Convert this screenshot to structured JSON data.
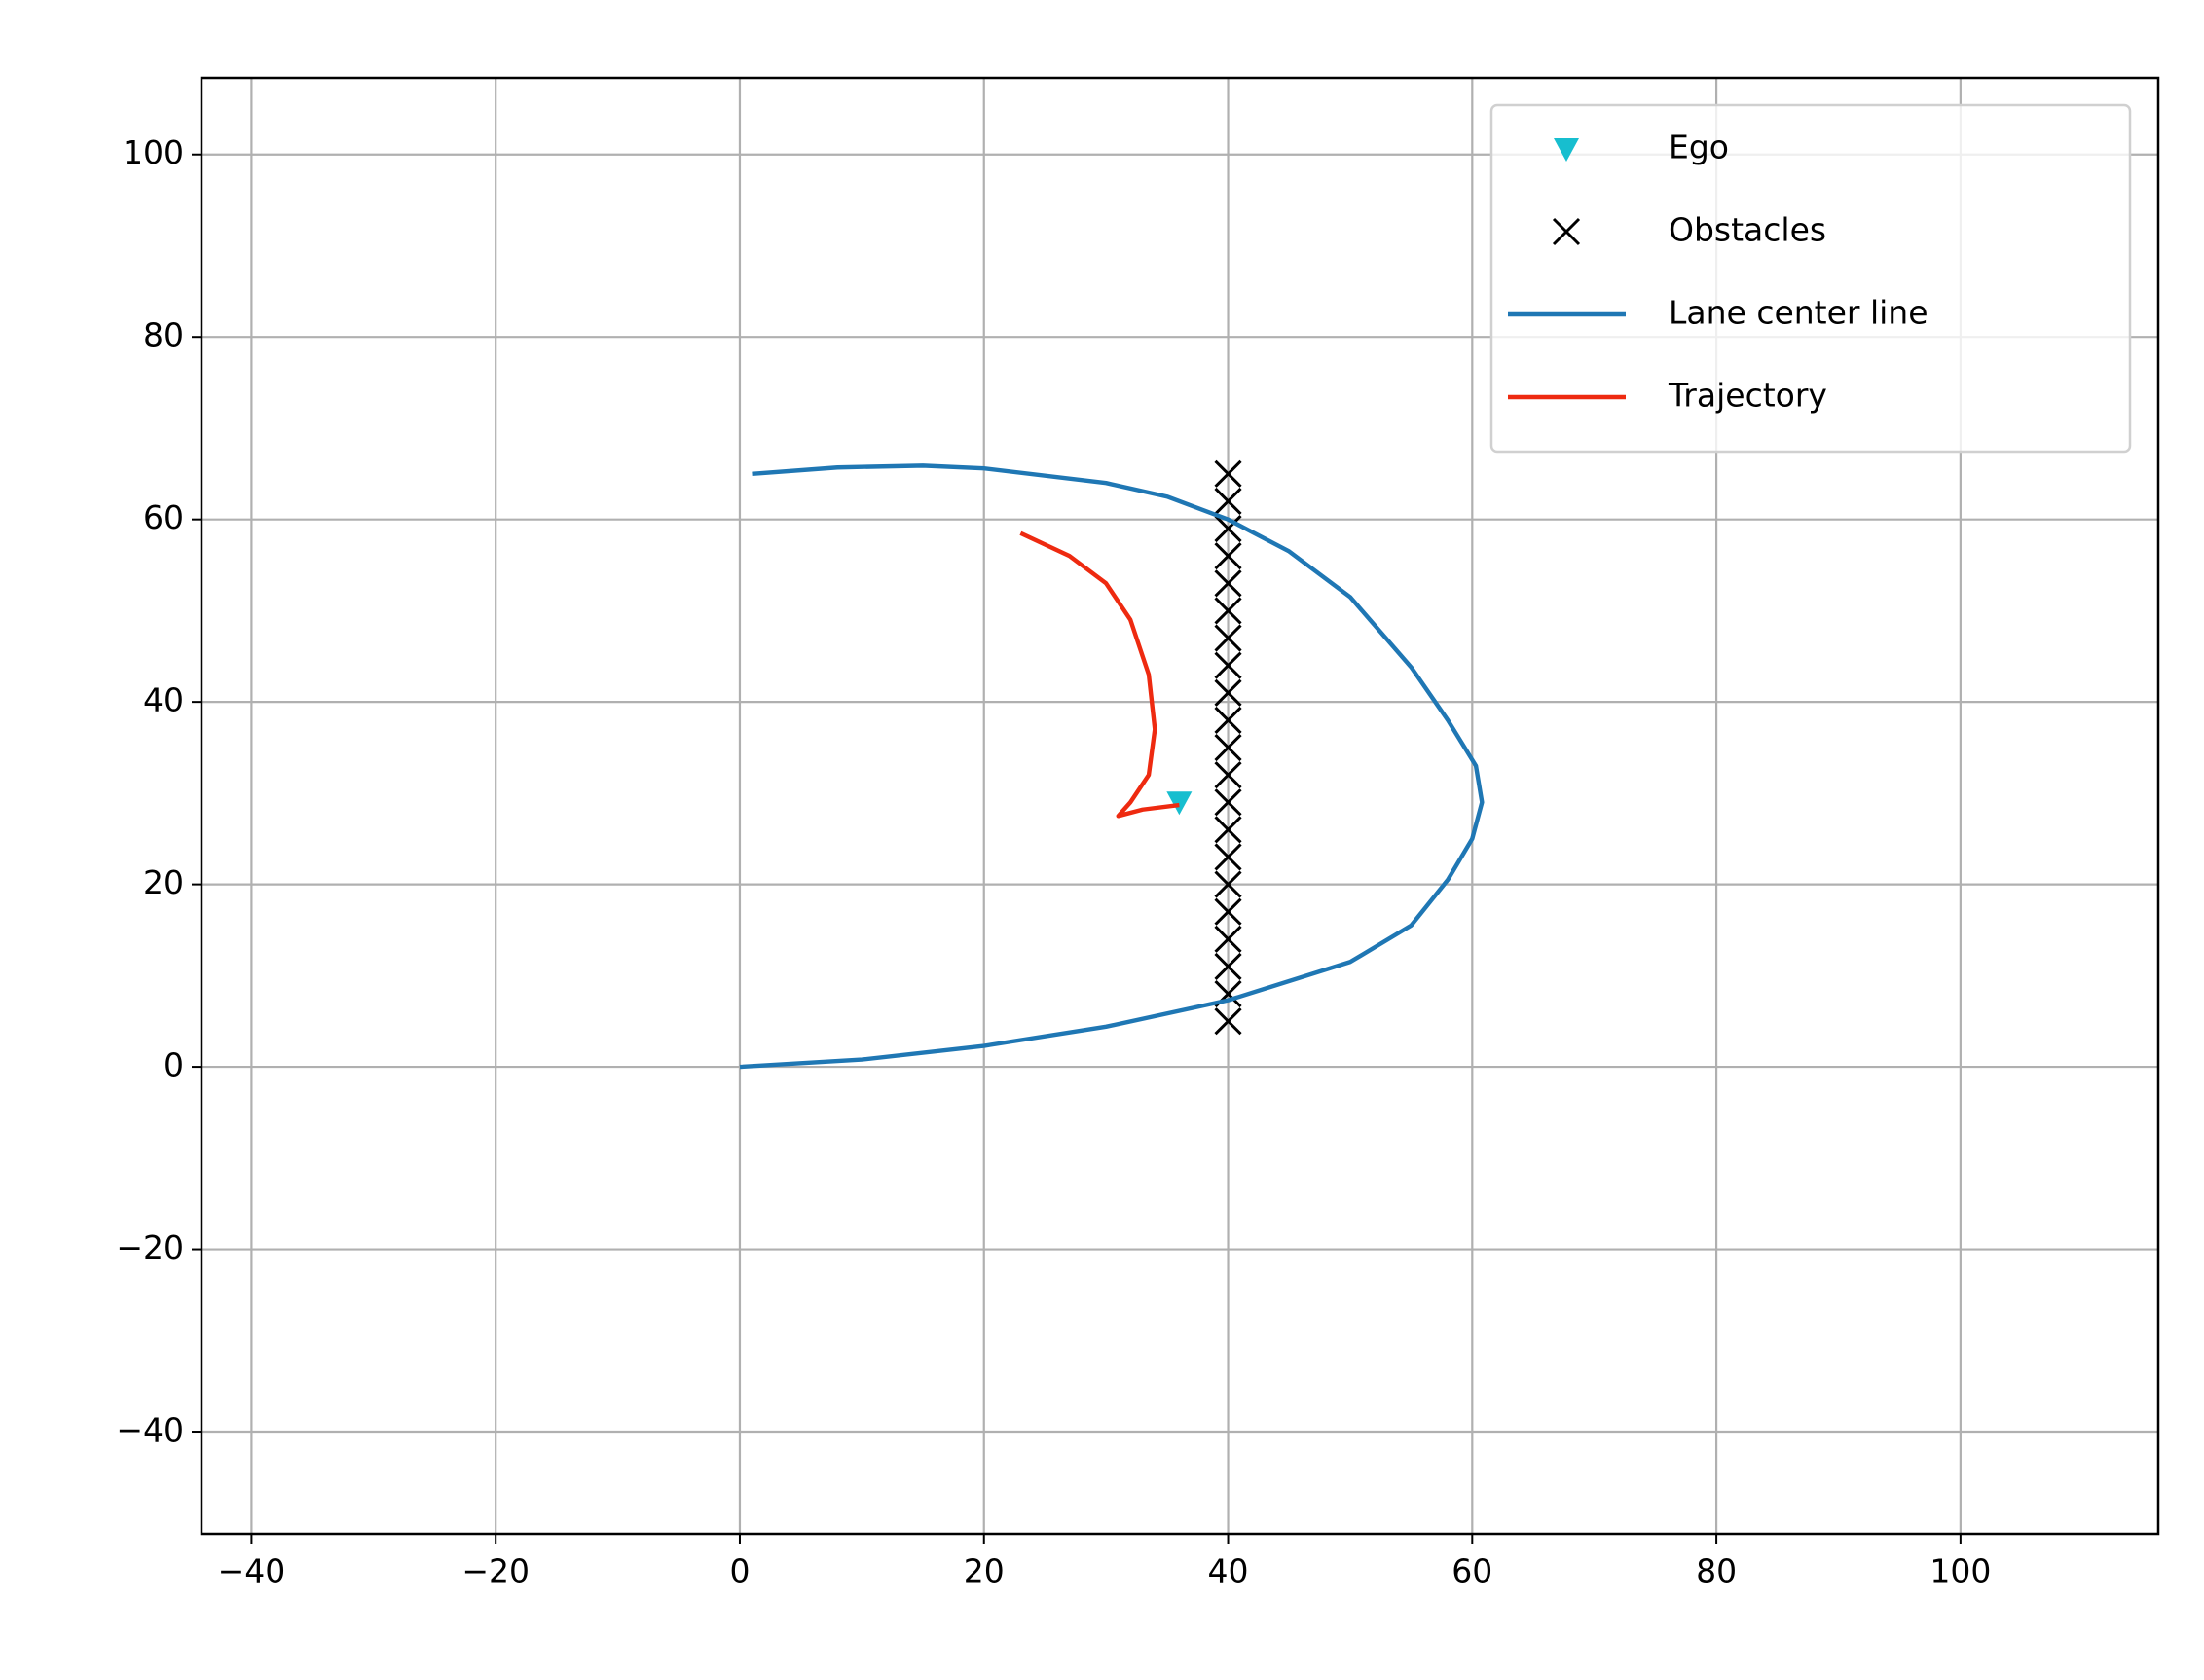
{
  "chart_data": {
    "type": "scatter",
    "xlim": [
      -44.1,
      116.2
    ],
    "ylim": [
      -51.2,
      108.4
    ],
    "xticks": [
      {
        "value": -40,
        "label": "−40"
      },
      {
        "value": -20,
        "label": "−20"
      },
      0,
      20,
      40,
      60,
      80,
      100
    ],
    "yticks": [
      {
        "value": -40,
        "label": "−40"
      },
      {
        "value": -20,
        "label": "−20"
      },
      0,
      20,
      40,
      60,
      80,
      100
    ],
    "grid": true,
    "legend": "upper right",
    "series": [
      {
        "name": "Ego",
        "color": "#17becf",
        "marker": "triangle-down",
        "x": [
          36
        ],
        "y": [
          29
        ]
      },
      {
        "name": "Obstacles",
        "color": "#000000",
        "marker": "cross",
        "x": [
          40,
          40,
          40,
          40,
          40,
          40,
          40,
          40,
          40,
          40,
          40,
          40,
          40,
          40,
          40,
          40,
          40,
          40,
          40,
          40,
          40
        ],
        "y": [
          5,
          8,
          11,
          14,
          17,
          20,
          23,
          26,
          29,
          32,
          35,
          38,
          41,
          44,
          47,
          50,
          53,
          56,
          59,
          62,
          65
        ]
      },
      {
        "name": "Lane center line",
        "color": "#1f77b4",
        "marker": "line",
        "x": [
          0,
          10,
          20,
          30,
          40,
          50,
          55,
          58,
          60,
          60.8,
          60.3,
          58,
          55,
          50,
          45,
          40,
          35,
          30,
          20,
          15,
          8,
          1
        ],
        "y": [
          0,
          0.8,
          2.3,
          4.4,
          7.3,
          11.5,
          15.5,
          20.5,
          25,
          29,
          33,
          38,
          43.8,
          51.5,
          56.5,
          60,
          62.5,
          64,
          65.6,
          65.9,
          65.7,
          65
        ]
      },
      {
        "name": "Trajectory",
        "color": "#ee2a10",
        "marker": "line",
        "x": [
          23,
          27,
          30,
          32,
          33.5,
          34,
          33.5,
          32,
          31,
          33,
          36
        ],
        "y": [
          58.5,
          56,
          53,
          49,
          43,
          37,
          32,
          29,
          27.5,
          28.2,
          28.7
        ]
      }
    ]
  }
}
